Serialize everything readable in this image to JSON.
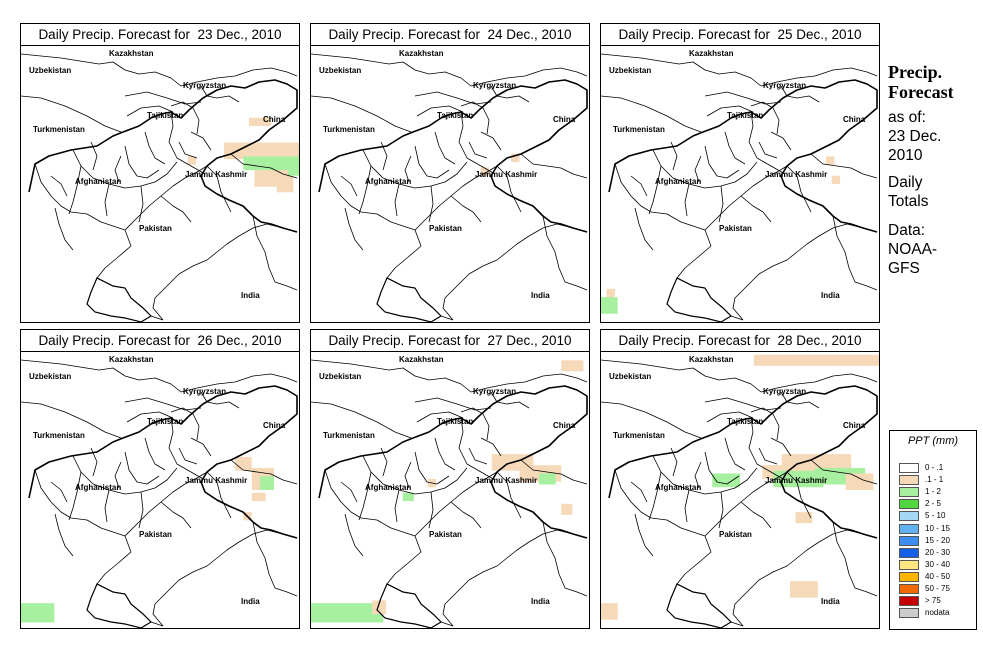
{
  "panels": [
    {
      "title": "Daily Precip. Forecast for  23 Dec., 2010",
      "precip": [
        [
          0.73,
          0.35,
          0.35,
          0.06,
          "#f5d9b8"
        ],
        [
          0.8,
          0.4,
          0.2,
          0.05,
          "#a7f0a0"
        ],
        [
          0.88,
          0.42,
          0.12,
          0.05,
          "#a7f0a0"
        ],
        [
          0.84,
          0.45,
          0.12,
          0.06,
          "#f5d9b8"
        ],
        [
          0.92,
          0.47,
          0.06,
          0.06,
          "#f5d9b8"
        ],
        [
          0.82,
          0.26,
          0.08,
          0.03,
          "#f5d9b8"
        ],
        [
          0.6,
          0.4,
          0.03,
          0.03,
          "#f5d9b8"
        ]
      ]
    },
    {
      "title": "Daily Precip. Forecast for  24 Dec., 2010",
      "precip": [
        [
          0.72,
          0.39,
          0.03,
          0.03,
          "#f5d9b8"
        ],
        [
          0.61,
          0.44,
          0.03,
          0.03,
          "#f5d9b8"
        ]
      ]
    },
    {
      "title": "Daily Precip. Forecast for  25 Dec., 2010",
      "precip": [
        [
          0.81,
          0.4,
          0.03,
          0.03,
          "#f5d9b8"
        ],
        [
          0.83,
          0.47,
          0.03,
          0.03,
          "#f5d9b8"
        ],
        [
          0.0,
          0.91,
          0.06,
          0.06,
          "#a7f0a0"
        ],
        [
          0.02,
          0.88,
          0.03,
          0.03,
          "#f5d9b8"
        ]
      ]
    },
    {
      "title": "Daily Precip. Forecast for  26 Dec., 2010",
      "precip": [
        [
          0.77,
          0.38,
          0.06,
          0.05,
          "#f5d9b8"
        ],
        [
          0.83,
          0.42,
          0.08,
          0.08,
          "#f5d9b8"
        ],
        [
          0.86,
          0.45,
          0.05,
          0.05,
          "#a7f0a0"
        ],
        [
          0.83,
          0.51,
          0.05,
          0.03,
          "#f5d9b8"
        ],
        [
          0.8,
          0.58,
          0.03,
          0.03,
          "#f5d9b8"
        ],
        [
          0.0,
          0.91,
          0.12,
          0.07,
          "#a7f0a0"
        ]
      ]
    },
    {
      "title": "Daily Precip. Forecast for  27 Dec., 2010",
      "precip": [
        [
          0.65,
          0.37,
          0.15,
          0.06,
          "#f5d9b8"
        ],
        [
          0.75,
          0.41,
          0.15,
          0.06,
          "#f5d9b8"
        ],
        [
          0.82,
          0.44,
          0.06,
          0.04,
          "#a7f0a0"
        ],
        [
          0.9,
          0.03,
          0.08,
          0.04,
          "#f5d9b8"
        ],
        [
          0.33,
          0.51,
          0.04,
          0.03,
          "#a7f0a0"
        ],
        [
          0.42,
          0.46,
          0.03,
          0.03,
          "#f5d9b8"
        ],
        [
          0.0,
          0.91,
          0.26,
          0.07,
          "#a7f0a0"
        ],
        [
          0.22,
          0.9,
          0.05,
          0.05,
          "#f5d9b8"
        ],
        [
          0.9,
          0.55,
          0.04,
          0.04,
          "#f5d9b8"
        ]
      ]
    },
    {
      "title": "Daily Precip. Forecast for  28 Dec., 2010",
      "precip": [
        [
          0.58,
          0.41,
          0.18,
          0.05,
          "#f5d9b8"
        ],
        [
          0.65,
          0.37,
          0.25,
          0.08,
          "#f5d9b8"
        ],
        [
          0.62,
          0.43,
          0.18,
          0.06,
          "#a7f0a0"
        ],
        [
          0.77,
          0.42,
          0.18,
          0.06,
          "#a7f0a0"
        ],
        [
          0.88,
          0.44,
          0.1,
          0.06,
          "#f5d9b8"
        ],
        [
          0.4,
          0.44,
          0.1,
          0.05,
          "#a7f0a0"
        ],
        [
          0.55,
          0.01,
          0.45,
          0.04,
          "#f5d9b8"
        ],
        [
          0.0,
          0.91,
          0.06,
          0.06,
          "#f5d9b8"
        ],
        [
          0.68,
          0.83,
          0.1,
          0.06,
          "#f5d9b8"
        ],
        [
          0.7,
          0.58,
          0.06,
          0.04,
          "#f5d9b8"
        ]
      ]
    }
  ],
  "labels": {
    "uzbekistan": "Uzbekistan",
    "kazakhstan": "Kazakhstan",
    "kyrgyzstan": "Kyrgyzstan",
    "tajikistan": "Tajikistan",
    "turkmenistan": "Turkmenistan",
    "china": "China",
    "afghanistan": "Afghanistan",
    "jammu": "Jammu Kashmir",
    "pakistan": "Pakistan",
    "india": "India"
  },
  "side": {
    "h1": "Precip.",
    "h2": "Forecast",
    "asof": "as of:",
    "date1": "23 Dec.",
    "date2": "2010",
    "daily": "Daily",
    "totals": "Totals",
    "data": "Data:",
    "src1": "NOAA-",
    "src2": "GFS"
  },
  "legend": {
    "title": "PPT (mm)",
    "items": [
      {
        "label": "0 - .1",
        "color": "#ffffff"
      },
      {
        "label": ".1 - 1",
        "color": "#f5d9b8"
      },
      {
        "label": "1 - 2",
        "color": "#a7f0a0"
      },
      {
        "label": "2 - 5",
        "color": "#52d640"
      },
      {
        "label": "5 - 10",
        "color": "#a3d9f5"
      },
      {
        "label": "10 - 15",
        "color": "#63b2f0"
      },
      {
        "label": "15 - 20",
        "color": "#3d8ef0"
      },
      {
        "label": "20 - 30",
        "color": "#1460e6"
      },
      {
        "label": "30 - 40",
        "color": "#ffe680"
      },
      {
        "label": "40 - 50",
        "color": "#ffb400"
      },
      {
        "label": "50 - 75",
        "color": "#f06a00"
      },
      {
        "label": "> 75",
        "color": "#c40000"
      },
      {
        "label": "nodata",
        "color": "#cccccc"
      }
    ]
  }
}
